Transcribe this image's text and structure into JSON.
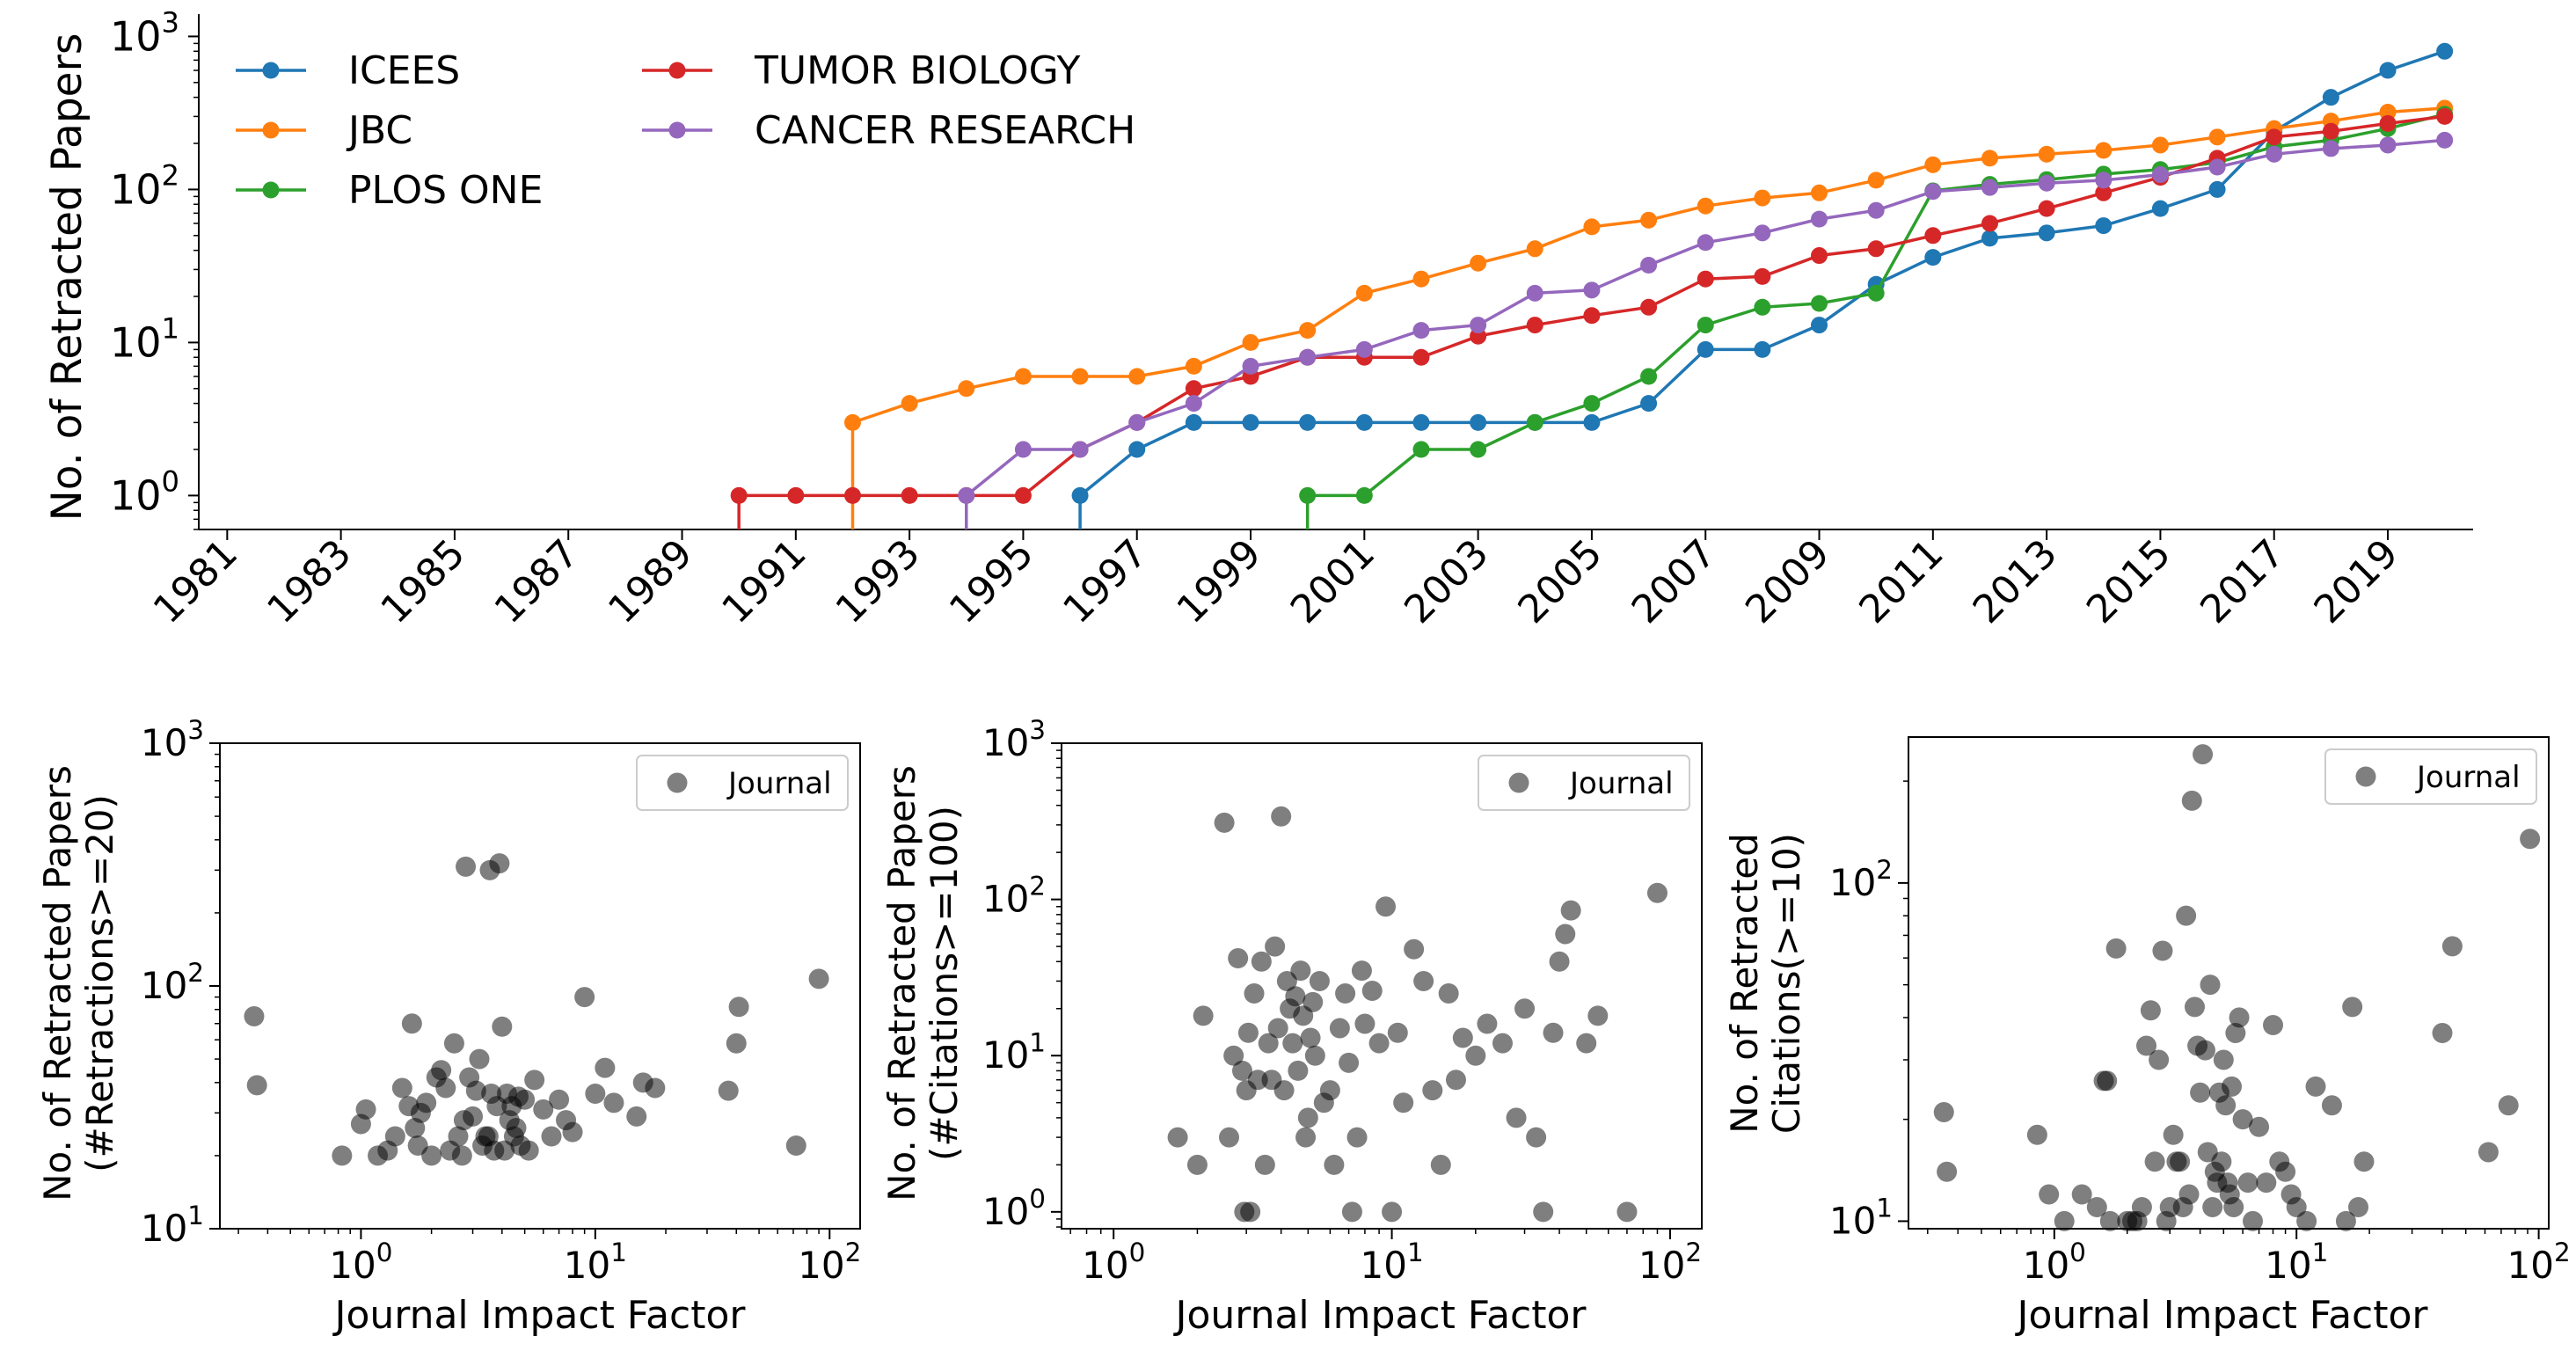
{
  "chart_data": [
    {
      "type": "line",
      "yscale": "log",
      "ylabel": "No. of Retracted Papers",
      "xlabel": "",
      "xlim": [
        1980.5,
        2020.5
      ],
      "ylim": [
        0.6,
        1400
      ],
      "xticks": [
        1981,
        1983,
        1985,
        1987,
        1989,
        1991,
        1993,
        1995,
        1997,
        1999,
        2001,
        2003,
        2005,
        2007,
        2009,
        2011,
        2013,
        2015,
        2017,
        2019
      ],
      "yticks": [
        {
          "value": 1,
          "base": "10",
          "exp": "0"
        },
        {
          "value": 10,
          "base": "10",
          "exp": "1"
        },
        {
          "value": 100,
          "base": "10",
          "exp": "2"
        },
        {
          "value": 1000,
          "base": "10",
          "exp": "3"
        }
      ],
      "legend_position": "top-left",
      "series": [
        {
          "name": "ICEES",
          "color": "#1f77b4",
          "x": [
            1996,
            1997,
            1998,
            1999,
            2000,
            2001,
            2002,
            2003,
            2004,
            2005,
            2006,
            2007,
            2008,
            2009,
            2010,
            2011,
            2012,
            2013,
            2014,
            2015,
            2016,
            2017,
            2018,
            2019,
            2020
          ],
          "values": [
            1,
            2,
            3,
            3,
            3,
            3,
            3,
            3,
            3,
            3,
            4,
            9,
            9,
            13,
            24,
            36,
            48,
            52,
            58,
            75,
            100,
            240,
            400,
            600,
            800
          ]
        },
        {
          "name": "JBC",
          "color": "#ff7f0e",
          "x": [
            1992,
            1993,
            1994,
            1995,
            1996,
            1997,
            1998,
            1999,
            2000,
            2001,
            2002,
            2003,
            2004,
            2005,
            2006,
            2007,
            2008,
            2009,
            2010,
            2011,
            2012,
            2013,
            2014,
            2015,
            2016,
            2017,
            2018,
            2019,
            2020
          ],
          "values": [
            3,
            4,
            5,
            6,
            6,
            6,
            7,
            10,
            12,
            21,
            26,
            33,
            41,
            57,
            63,
            78,
            88,
            95,
            115,
            145,
            160,
            170,
            180,
            195,
            220,
            250,
            280,
            320,
            340
          ]
        },
        {
          "name": "PLOS ONE",
          "color": "#2ca02c",
          "x": [
            2000,
            2001,
            2002,
            2003,
            2004,
            2005,
            2006,
            2007,
            2008,
            2009,
            2010,
            2011,
            2012,
            2013,
            2014,
            2015,
            2016,
            2017,
            2018,
            2019,
            2020
          ],
          "values": [
            1,
            1,
            2,
            2,
            3,
            4,
            6,
            13,
            17,
            18,
            21,
            98,
            108,
            116,
            126,
            135,
            150,
            190,
            210,
            250,
            310
          ]
        },
        {
          "name": "TUMOR BIOLOGY",
          "color": "#d62728",
          "x": [
            1990,
            1991,
            1992,
            1993,
            1994,
            1995,
            1996,
            1997,
            1998,
            1999,
            2000,
            2001,
            2002,
            2003,
            2004,
            2005,
            2006,
            2007,
            2008,
            2009,
            2010,
            2011,
            2012,
            2013,
            2014,
            2015,
            2016,
            2017,
            2018,
            2019,
            2020
          ],
          "values": [
            1,
            1,
            1,
            1,
            1,
            1,
            2,
            3,
            5,
            6,
            8,
            8,
            8,
            11,
            13,
            15,
            17,
            26,
            27,
            37,
            41,
            50,
            60,
            75,
            95,
            120,
            160,
            220,
            240,
            270,
            300
          ]
        },
        {
          "name": "CANCER RESEARCH",
          "color": "#9467bd",
          "x": [
            1994,
            1995,
            1996,
            1997,
            1998,
            1999,
            2000,
            2001,
            2002,
            2003,
            2004,
            2005,
            2006,
            2007,
            2008,
            2009,
            2010,
            2011,
            2012,
            2013,
            2014,
            2015,
            2016,
            2017,
            2018,
            2019,
            2020
          ],
          "values": [
            1,
            2,
            2,
            3,
            4,
            7,
            8,
            9,
            12,
            13,
            21,
            22,
            32,
            45,
            52,
            64,
            73,
            97,
            103,
            110,
            115,
            125,
            140,
            170,
            185,
            195,
            210
          ]
        }
      ]
    },
    {
      "type": "scatter",
      "xscale": "log",
      "yscale": "log",
      "xlabel": "Journal Impact Factor",
      "ylabel_lines": [
        "No. of Retracted Papers",
        "(#Retractions>=20)"
      ],
      "xlim": [
        0.25,
        135
      ],
      "ylim": [
        10,
        1000
      ],
      "xticks": [
        {
          "value": 1,
          "base": "10",
          "exp": "0"
        },
        {
          "value": 10,
          "base": "10",
          "exp": "1"
        },
        {
          "value": 100,
          "base": "10",
          "exp": "2"
        }
      ],
      "yticks": [
        {
          "value": 10,
          "base": "10",
          "exp": "1"
        },
        {
          "value": 100,
          "base": "10",
          "exp": "2"
        },
        {
          "value": 1000,
          "base": "10",
          "exp": "3"
        }
      ],
      "legend": "Journal",
      "legend_position": "top-right",
      "x": [
        0.35,
        0.36,
        0.83,
        1.0,
        1.05,
        1.18,
        1.3,
        1.4,
        1.5,
        1.6,
        1.65,
        1.7,
        1.75,
        1.8,
        1.9,
        2.0,
        2.1,
        2.2,
        2.3,
        2.4,
        2.5,
        2.6,
        2.7,
        2.75,
        2.8,
        2.9,
        3.0,
        3.1,
        3.2,
        3.3,
        3.4,
        3.5,
        3.55,
        3.6,
        3.7,
        3.8,
        3.9,
        4.0,
        4.1,
        4.2,
        4.3,
        4.4,
        4.5,
        4.6,
        4.7,
        4.8,
        5.0,
        5.2,
        5.5,
        6.0,
        6.5,
        7.0,
        7.5,
        8.0,
        9.0,
        10.0,
        11.0,
        12.0,
        15.0,
        16.0,
        18.0,
        37.0,
        40.0,
        41.0,
        72.0,
        90.0
      ],
      "values": [
        75,
        39,
        20,
        27,
        31,
        20,
        21,
        24,
        38,
        32,
        70,
        26,
        22,
        30,
        33,
        20,
        42,
        45,
        38,
        21,
        58,
        24,
        20,
        28,
        310,
        42,
        29,
        37,
        50,
        22,
        24,
        24,
        300,
        36,
        21,
        32,
        320,
        68,
        21,
        36,
        28,
        32,
        24,
        26,
        35,
        22,
        34,
        21,
        41,
        31,
        24,
        34,
        28,
        25,
        90,
        36,
        46,
        33,
        29,
        40,
        38,
        37,
        58,
        82,
        22,
        107
      ]
    },
    {
      "type": "scatter",
      "xscale": "log",
      "yscale": "log",
      "xlabel": "Journal Impact Factor",
      "ylabel_lines": [
        "No. of Retracted Papers",
        "(#Citations>=100)"
      ],
      "xlim": [
        0.65,
        130
      ],
      "ylim": [
        0.78,
        1000
      ],
      "xticks": [
        {
          "value": 1,
          "base": "10",
          "exp": "0"
        },
        {
          "value": 10,
          "base": "10",
          "exp": "1"
        },
        {
          "value": 100,
          "base": "10",
          "exp": "2"
        }
      ],
      "yticks": [
        {
          "value": 1,
          "base": "10",
          "exp": "0"
        },
        {
          "value": 10,
          "base": "10",
          "exp": "1"
        },
        {
          "value": 100,
          "base": "10",
          "exp": "2"
        },
        {
          "value": 1000,
          "base": "10",
          "exp": "3"
        }
      ],
      "legend": "Journal",
      "legend_position": "top-right",
      "x": [
        1.7,
        2.0,
        2.1,
        2.5,
        2.6,
        2.7,
        2.8,
        2.9,
        2.95,
        3.0,
        3.05,
        3.1,
        3.2,
        3.3,
        3.4,
        3.5,
        3.6,
        3.7,
        3.8,
        3.9,
        4.0,
        4.1,
        4.2,
        4.3,
        4.4,
        4.5,
        4.6,
        4.7,
        4.8,
        4.9,
        5.0,
        5.1,
        5.2,
        5.3,
        5.5,
        5.7,
        6.0,
        6.2,
        6.5,
        6.8,
        7.0,
        7.2,
        7.5,
        7.8,
        8.0,
        8.5,
        9.0,
        9.5,
        10.0,
        10.5,
        11.0,
        12.0,
        13.0,
        14.0,
        15.0,
        16.0,
        17.0,
        18.0,
        20.0,
        22.0,
        25.0,
        28.0,
        30.0,
        33.0,
        35.0,
        38.0,
        40.0,
        42.0,
        44.0,
        50.0,
        55.0,
        70.0,
        90.0
      ],
      "values": [
        3,
        2,
        18,
        310,
        3,
        10,
        42,
        8,
        1,
        6,
        14,
        1,
        25,
        7,
        40,
        2,
        12,
        7,
        50,
        15,
        340,
        6,
        30,
        20,
        12,
        24,
        8,
        35,
        18,
        3,
        4,
        13,
        22,
        10,
        30,
        5,
        6,
        2,
        15,
        25,
        9,
        1,
        3,
        35,
        16,
        26,
        12,
        90,
        1,
        14,
        5,
        48,
        30,
        6,
        2,
        25,
        7,
        13,
        10,
        16,
        12,
        4,
        20,
        3,
        1,
        14,
        40,
        60,
        85,
        12,
        18,
        1,
        110
      ]
    },
    {
      "type": "scatter",
      "xscale": "log",
      "yscale": "log",
      "xlabel": "Journal Impact Factor",
      "ylabel_lines": [
        "No. of Retracted",
        "Citations(>=10)"
      ],
      "xlim": [
        0.25,
        110
      ],
      "ylim": [
        9.5,
        270
      ],
      "xticks": [
        {
          "value": 1,
          "base": "10",
          "exp": "0"
        },
        {
          "value": 10,
          "base": "10",
          "exp": "1"
        },
        {
          "value": 100,
          "base": "10",
          "exp": "2"
        }
      ],
      "yticks": [
        {
          "value": 10,
          "base": "10",
          "exp": "1"
        },
        {
          "value": 100,
          "base": "10",
          "exp": "2"
        }
      ],
      "legend": "Journal",
      "legend_position": "top-right",
      "x": [
        0.35,
        0.36,
        0.85,
        0.95,
        1.1,
        1.3,
        1.5,
        1.6,
        1.65,
        1.7,
        1.8,
        2.0,
        2.1,
        2.2,
        2.3,
        2.4,
        2.5,
        2.6,
        2.7,
        2.8,
        2.9,
        3.0,
        3.1,
        3.2,
        3.3,
        3.4,
        3.5,
        3.6,
        3.7,
        3.8,
        3.9,
        4.0,
        4.1,
        4.2,
        4.3,
        4.4,
        4.5,
        4.6,
        4.7,
        4.8,
        4.9,
        5.0,
        5.1,
        5.2,
        5.3,
        5.4,
        5.5,
        5.6,
        5.8,
        6.0,
        6.3,
        6.6,
        7.0,
        7.5,
        8.0,
        8.5,
        9.0,
        9.5,
        10.0,
        11.0,
        12.0,
        14.0,
        16.0,
        17.0,
        18.0,
        19.0,
        40.0,
        44.0,
        62.0,
        75.0,
        92.0
      ],
      "values": [
        21,
        14,
        18,
        12,
        10,
        12,
        11,
        26,
        26,
        10,
        64,
        10,
        10,
        10,
        11,
        33,
        42,
        15,
        30,
        63,
        10,
        11,
        18,
        15,
        15,
        11,
        80,
        12,
        175,
        43,
        33,
        24,
        240,
        32,
        16,
        50,
        11,
        14,
        13,
        24,
        15,
        30,
        22,
        13,
        12,
        25,
        11,
        36,
        40,
        20,
        13,
        10,
        19,
        13,
        38,
        15,
        14,
        12,
        11,
        10,
        25,
        22,
        10,
        43,
        11,
        15,
        36,
        65,
        16,
        22,
        135
      ]
    }
  ]
}
